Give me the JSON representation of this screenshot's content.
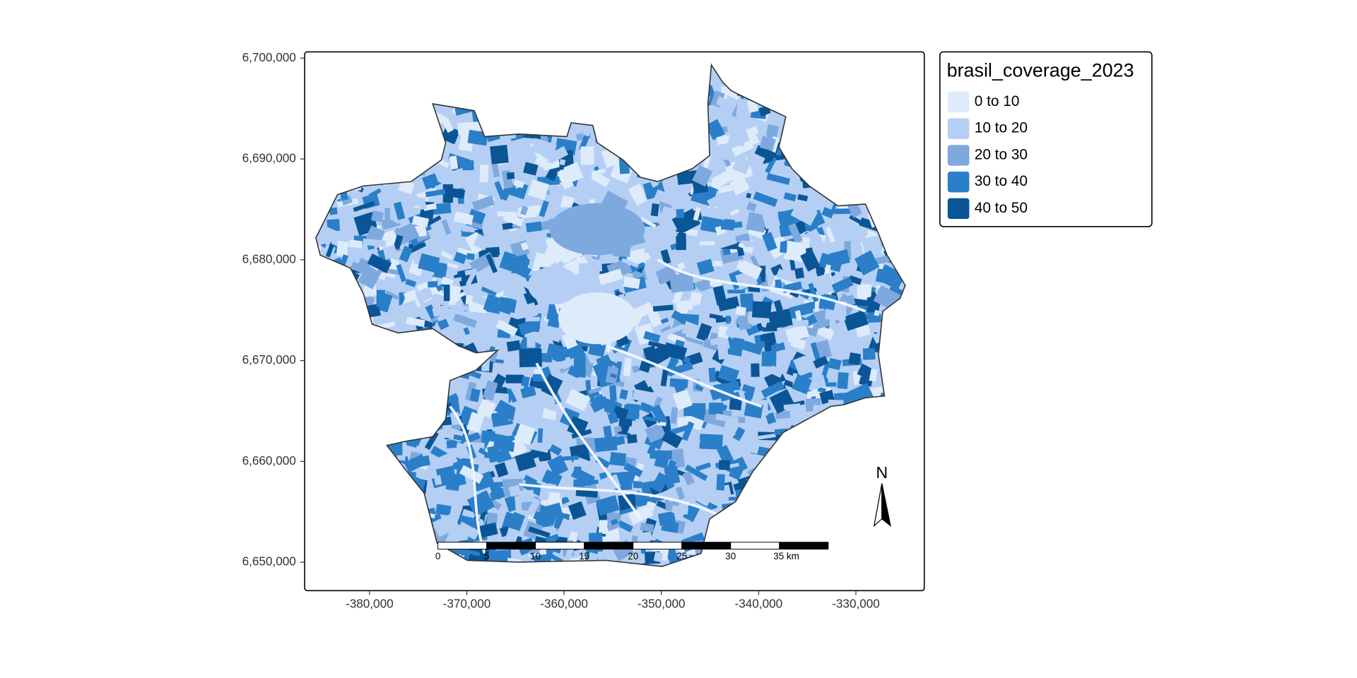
{
  "map": {
    "xlim": [
      -386670,
      -322970
    ],
    "ylim": [
      6647180,
      6700620
    ],
    "xticks": [
      {
        "value": -380000,
        "label": "-380,000"
      },
      {
        "value": -370000,
        "label": "-370,000"
      },
      {
        "value": -360000,
        "label": "-360,000"
      },
      {
        "value": -350000,
        "label": "-350,000"
      },
      {
        "value": -340000,
        "label": "-340,000"
      },
      {
        "value": -330000,
        "label": "-330,000"
      }
    ],
    "yticks": [
      {
        "value": 6650000,
        "label": "6,650,000"
      },
      {
        "value": 6660000,
        "label": "6,660,000"
      },
      {
        "value": 6670000,
        "label": "6,670,000"
      },
      {
        "value": 6680000,
        "label": "6,680,000"
      },
      {
        "value": 6690000,
        "label": "6,690,000"
      },
      {
        "value": 6700000,
        "label": "6,700,000"
      }
    ],
    "north_arrow": "N",
    "scale_bar": [
      "0",
      "5",
      "10",
      "15",
      "20",
      "25",
      "30",
      "35 km"
    ]
  },
  "legend": {
    "title": "brasil_coverage_2023",
    "classes": [
      {
        "label": "0 to 10",
        "color": "#deebfb"
      },
      {
        "label": "10 to 20",
        "color": "#b5cff4"
      },
      {
        "label": "20 to 30",
        "color": "#7ea9de"
      },
      {
        "label": "30 to 40",
        "color": "#2a7fc8"
      },
      {
        "label": "40 to 50",
        "color": "#0a5596"
      }
    ]
  }
}
